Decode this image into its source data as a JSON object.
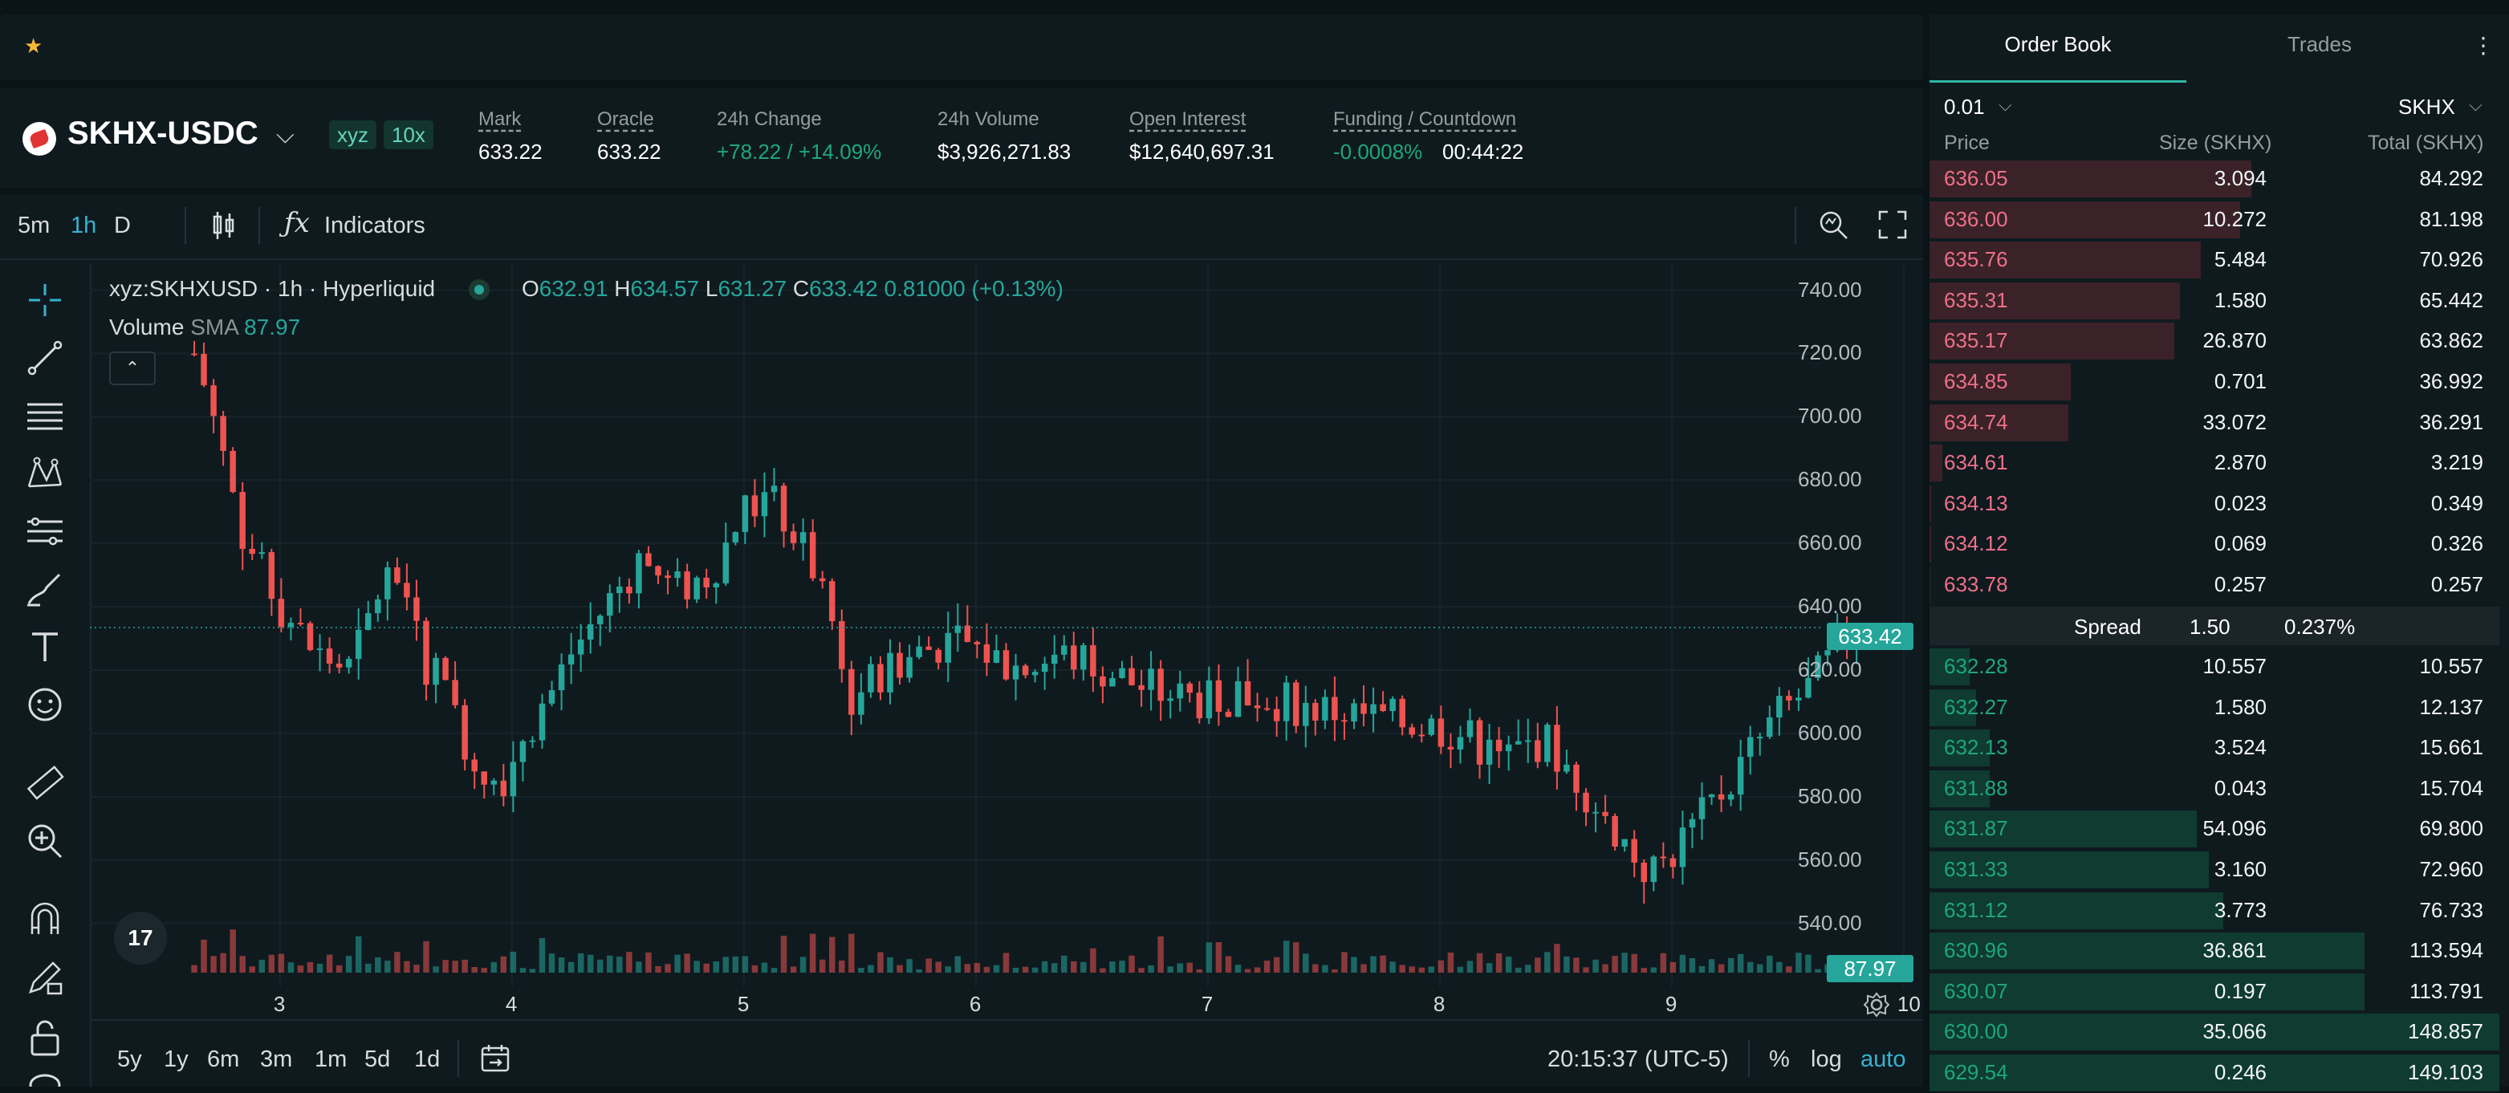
{
  "header": {
    "pair": "SKHX-USDC",
    "dex_tag": "xyz",
    "leverage_tag": "10x",
    "stats": [
      {
        "label": "Mark",
        "value": "633.22"
      },
      {
        "label": "Oracle",
        "value": "633.22"
      },
      {
        "label": "24h Change",
        "value": "+78.22 / +14.09%"
      },
      {
        "label": "24h Volume",
        "value": "$3,926,271.83"
      },
      {
        "label": "Open Interest",
        "value": "$12,640,697.31"
      },
      {
        "label": "Funding / Countdown",
        "value": "-0.0008%",
        "countdown": "00:44:22"
      }
    ]
  },
  "toolbar": {
    "timeframes": [
      "5m",
      "1h",
      "D"
    ],
    "active_timeframe": "1h",
    "indicators_label": "Indicators"
  },
  "legend": {
    "title": "xyz:SKHXUSD · 1h · Hyperliquid",
    "o_label": "O",
    "o": "632.91",
    "h_label": "H",
    "h": "634.57",
    "l_label": "L",
    "l": "631.27",
    "c_label": "C",
    "c": "633.42",
    "change": "0.81000 (+0.13%)",
    "volume_label": "Volume",
    "sma_label": "SMA",
    "sma_value": "87.97"
  },
  "chart_data": {
    "type": "candlestick",
    "symbol": "xyz:SKHXUSD",
    "interval": "1h",
    "y_ticks": [
      "740.00",
      "720.00",
      "700.00",
      "680.00",
      "660.00",
      "640.00",
      "620.00",
      "600.00",
      "580.00",
      "560.00",
      "540.00"
    ],
    "x_ticks": [
      "3",
      "4",
      "5",
      "6",
      "7",
      "8",
      "9",
      "10"
    ],
    "ylim": [
      530,
      748
    ],
    "last_price": "633.42",
    "volume_sma": "87.97",
    "colors": {
      "up": "#26a69a",
      "down": "#ef5350"
    },
    "close_path": [
      [
        2.63,
        720
      ],
      [
        2.72,
        700
      ],
      [
        2.85,
        660
      ],
      [
        3.0,
        640
      ],
      [
        3.15,
        625
      ],
      [
        3.3,
        620
      ],
      [
        3.45,
        650
      ],
      [
        3.6,
        640
      ],
      [
        3.65,
        610
      ],
      [
        3.7,
        630
      ],
      [
        3.75,
        605
      ],
      [
        3.85,
        590
      ],
      [
        3.95,
        585
      ],
      [
        4.05,
        600
      ],
      [
        4.15,
        610
      ],
      [
        4.25,
        625
      ],
      [
        4.4,
        640
      ],
      [
        4.55,
        655
      ],
      [
        4.7,
        645
      ],
      [
        4.85,
        650
      ],
      [
        5.0,
        670
      ],
      [
        5.1,
        675
      ],
      [
        5.2,
        665
      ],
      [
        5.35,
        645
      ],
      [
        5.45,
        610
      ],
      [
        5.6,
        620
      ],
      [
        5.75,
        625
      ],
      [
        5.9,
        630
      ],
      [
        6.05,
        625
      ],
      [
        6.2,
        620
      ],
      [
        6.35,
        625
      ],
      [
        6.5,
        622
      ],
      [
        6.7,
        615
      ],
      [
        6.85,
        612
      ],
      [
        7.0,
        610
      ],
      [
        7.2,
        612
      ],
      [
        7.45,
        608
      ],
      [
        7.7,
        605
      ],
      [
        7.9,
        603
      ],
      [
        8.1,
        600
      ],
      [
        8.25,
        592
      ],
      [
        8.45,
        598
      ],
      [
        8.6,
        585
      ],
      [
        8.75,
        570
      ],
      [
        8.9,
        555
      ],
      [
        9.0,
        562
      ],
      [
        9.15,
        575
      ],
      [
        9.3,
        590
      ],
      [
        9.45,
        605
      ],
      [
        9.6,
        615
      ],
      [
        9.75,
        630
      ],
      [
        9.83,
        633.42
      ]
    ]
  },
  "axis_controls": {
    "ranges": [
      "5y",
      "1y",
      "6m",
      "3m",
      "1m",
      "5d",
      "1d"
    ],
    "clock": "20:15:37 (UTC-5)",
    "pct": "%",
    "log": "log",
    "auto": "auto"
  },
  "orderbook": {
    "tabs": [
      "Order Book",
      "Trades"
    ],
    "tick_size": "0.01",
    "unit": "SKHX",
    "headers": [
      "Price",
      "Size (SKHX)",
      "Total (SKHX)"
    ],
    "asks": [
      {
        "price": "636.05",
        "size": "3.094",
        "total": "84.292",
        "depth": 0.565
      },
      {
        "price": "636.00",
        "size": "10.272",
        "total": "81.198",
        "depth": 0.545
      },
      {
        "price": "635.76",
        "size": "5.484",
        "total": "70.926",
        "depth": 0.476
      },
      {
        "price": "635.31",
        "size": "1.580",
        "total": "65.442",
        "depth": 0.44
      },
      {
        "price": "635.17",
        "size": "26.870",
        "total": "63.862",
        "depth": 0.429
      },
      {
        "price": "634.85",
        "size": "0.701",
        "total": "36.992",
        "depth": 0.248
      },
      {
        "price": "634.74",
        "size": "33.072",
        "total": "36.291",
        "depth": 0.244
      },
      {
        "price": "634.61",
        "size": "2.870",
        "total": "3.219",
        "depth": 0.022
      },
      {
        "price": "634.13",
        "size": "0.023",
        "total": "0.349",
        "depth": 0.003
      },
      {
        "price": "634.12",
        "size": "0.069",
        "total": "0.326",
        "depth": 0.003
      },
      {
        "price": "633.78",
        "size": "0.257",
        "total": "0.257",
        "depth": 0.002
      }
    ],
    "spread": {
      "label": "Spread",
      "value": "1.50",
      "pct": "0.237%"
    },
    "bids": [
      {
        "price": "632.28",
        "size": "10.557",
        "total": "10.557",
        "depth": 0.071
      },
      {
        "price": "632.27",
        "size": "1.580",
        "total": "12.137",
        "depth": 0.082
      },
      {
        "price": "632.13",
        "size": "3.524",
        "total": "15.661",
        "depth": 0.105
      },
      {
        "price": "631.88",
        "size": "0.043",
        "total": "15.704",
        "depth": 0.105
      },
      {
        "price": "631.87",
        "size": "54.096",
        "total": "69.800",
        "depth": 0.469
      },
      {
        "price": "631.33",
        "size": "3.160",
        "total": "72.960",
        "depth": 0.49
      },
      {
        "price": "631.12",
        "size": "3.773",
        "total": "76.733",
        "depth": 0.515
      },
      {
        "price": "630.96",
        "size": "36.861",
        "total": "113.594",
        "depth": 0.763
      },
      {
        "price": "630.07",
        "size": "0.197",
        "total": "113.791",
        "depth": 0.764
      },
      {
        "price": "630.00",
        "size": "35.066",
        "total": "148.857",
        "depth": 1.0
      },
      {
        "price": "629.54",
        "size": "0.246",
        "total": "149.103",
        "depth": 1.0
      }
    ]
  }
}
